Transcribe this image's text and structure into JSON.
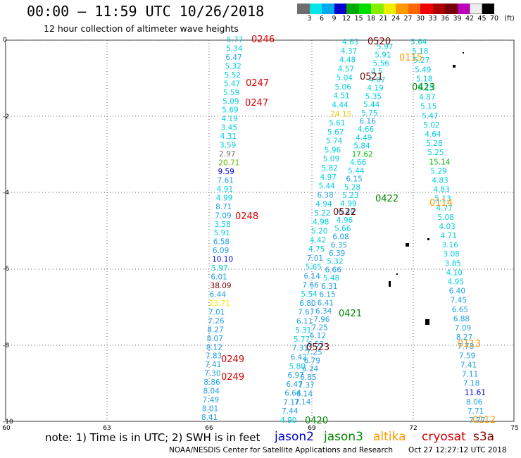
{
  "header": {
    "title": "00:00 – 11:59 UTC 10/26/2018",
    "subtitle": "12 hour collection of altimeter wave heights"
  },
  "colorbar": {
    "colors": [
      "#6e6e6e",
      "#00e5e5",
      "#00aaee",
      "#0000cc",
      "#00aa00",
      "#00dd00",
      "#88ee00",
      "#eeee00",
      "#ff9900",
      "#ff6600",
      "#ee0000",
      "#aa0000",
      "#770000",
      "#bb00bb",
      "#eeeeee",
      "#000000"
    ],
    "labels": [
      "3",
      "6",
      "9",
      "12",
      "15",
      "18",
      "21",
      "24",
      "27",
      "30",
      "33",
      "36",
      "39",
      "42",
      "45",
      "70",
      "(ft)"
    ]
  },
  "axes": {
    "y_labels": [
      "0",
      "-2",
      "-4",
      "-6",
      "-8",
      "-10"
    ],
    "x_labels": [
      "60",
      "63",
      "66",
      "69",
      "72",
      "75"
    ]
  },
  "tracks": {
    "t0246": [
      "5.77",
      "5.34",
      "6.47",
      "5.32",
      "5.52",
      "5.47",
      "5.59",
      "5.09",
      "5.69",
      "4.19",
      "3.45",
      "4.31",
      "3.59",
      "2.97",
      "20.71",
      "9.59",
      "7.61",
      "4.91",
      "4.99",
      "8.71",
      "7.09",
      "3.58",
      "5.91",
      "6.58",
      "6.09",
      "10.10",
      "5.97",
      "6.01",
      "38.09",
      "6.44",
      "23.71",
      "7.01",
      "7.26",
      "8.27",
      "8.07",
      "8.12",
      "7.83",
      "7.41",
      "7.30",
      "8.86",
      "8.04",
      "7.49",
      "8.01",
      "8.41"
    ],
    "t0520": [
      "4.63",
      "4.37",
      "4.48",
      "4.57",
      "5.04",
      "5.06",
      "4.51",
      "4.44",
      "24.15",
      "5.61",
      "5.67",
      "5.74",
      "5.96",
      "5.09",
      "5.82",
      "4.97",
      "5.44",
      "6.38",
      "4.94",
      "5.22",
      "4.98",
      "5.20",
      "4.42",
      "4.75",
      "7.01",
      "5.65",
      "6.14",
      "7.66",
      "5.54",
      "6.80",
      "7.67",
      "6.11",
      "5.31",
      "5.77",
      "7.31",
      "6.42",
      "5.80",
      "6.97",
      "6.47",
      "6.64",
      "7.17",
      "7.44",
      "4.90"
    ],
    "t0521": [
      "5.97",
      "5.91",
      "5.56",
      "4.5",
      "4.67",
      "4.19",
      "5.35",
      "5.44",
      "5.75",
      "6.16",
      "4.66",
      "4.49",
      "5.84",
      "17.62",
      "4.66",
      "5.44",
      "6.15",
      "5.28",
      "5.23",
      "4.99",
      "6.49",
      "4.96",
      "5.66",
      "6.08",
      "6.35",
      "6.39",
      "5.32",
      "6.66",
      "5.48",
      "6.31",
      "6.15",
      "6.41",
      "6.34",
      "7.96",
      "7.25",
      "6.12",
      "6.53",
      "7.25",
      "6.79",
      "6.24",
      "6.85",
      "7.37",
      "6.14",
      "7.14"
    ],
    "t0115": [
      "5.64",
      "5.18",
      "5.27",
      "5.49",
      "5.18",
      "5.15",
      "4.87",
      "5.15",
      "5.47",
      "5.02",
      "4.64",
      "5.28",
      "5.25",
      "15.14",
      "5.29",
      "4.83",
      "4.83",
      "5.13",
      "4.77",
      "5.08",
      "4.03",
      "4.71",
      "3.16",
      "3.08",
      "3.85",
      "4.10",
      "4.95",
      "6.40",
      "7.45",
      "6.65",
      "6.88",
      "7.09",
      "8.27",
      "7.78",
      "7.59",
      "7.41",
      "7.11",
      "7.18",
      "11.61",
      "8.06",
      "7.71",
      "7.77"
    ]
  },
  "track_labels": {
    "l0246": "0246",
    "l0247a": "0247",
    "l0247b": "0247",
    "l0248": "0248",
    "l0249a": "0249",
    "l0249b": "0249",
    "l0520": "0520",
    "l0521": "0521",
    "l0522": "0522",
    "l0523": "0523",
    "l0420": "0420",
    "l0421": "0421",
    "l0422": "0422",
    "l0423": "0423",
    "l0115": "0115",
    "l0114": "0114",
    "l0113": "0113",
    "l0112": "0112"
  },
  "note": "note: 1) Time is in UTC; 2) SWH is in feet",
  "legend": [
    {
      "name": "jason2",
      "color": "#0000cc"
    },
    {
      "name": "jason3",
      "color": "#008800"
    },
    {
      "name": "altika",
      "color": "#ff9900"
    },
    {
      "name": "cryosat",
      "color": "#cc0000"
    },
    {
      "name": "s3a",
      "color": "#880000"
    }
  ],
  "footer": {
    "left": "NOAA/NESDIS Center for Satellite Applications and Research",
    "right": "Oct 27 12:27:12 UTC 2018"
  }
}
